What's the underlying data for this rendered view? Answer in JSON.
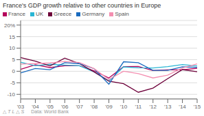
{
  "chart_data": {
    "type": "line",
    "title": "France's GDP growth relative to other countries in Europe",
    "categories": [
      "'03",
      "'04",
      "'05",
      "'06",
      "'07",
      "'08",
      "'09",
      "'10",
      "'11",
      "'12",
      "'13",
      "'14",
      "'15"
    ],
    "series": [
      {
        "name": "France",
        "color": "#b5005b",
        "values": [
          0.8,
          2.8,
          1.6,
          2.4,
          2.4,
          0.2,
          -2.9,
          2.0,
          2.1,
          0.3,
          0.6,
          0.6,
          1.3
        ]
      },
      {
        "name": "UK",
        "color": "#29b6d4",
        "values": [
          3.9,
          2.4,
          3.0,
          2.7,
          2.4,
          -0.3,
          -4.2,
          1.9,
          1.5,
          1.4,
          2.0,
          2.9,
          2.3
        ]
      },
      {
        "name": "Greece",
        "color": "#6d003a",
        "values": [
          5.9,
          4.4,
          2.3,
          5.7,
          3.3,
          -0.3,
          -4.3,
          -5.4,
          -9.1,
          -7.3,
          -3.2,
          0.7,
          -0.2
        ]
      },
      {
        "name": "Germany",
        "color": "#1a6bbf",
        "values": [
          -0.7,
          1.2,
          0.7,
          3.7,
          3.3,
          1.1,
          -5.6,
          4.1,
          3.7,
          0.4,
          0.4,
          1.9,
          1.7
        ]
      },
      {
        "name": "Spain",
        "color": "#f48fb1",
        "values": [
          3.1,
          3.3,
          3.6,
          4.2,
          3.8,
          1.1,
          -3.6,
          0.0,
          -1.0,
          -2.9,
          -1.7,
          1.4,
          3.2
        ]
      }
    ],
    "ylim": [
      -12,
      22
    ],
    "yticks": [
      -10,
      -5,
      0,
      5,
      10,
      15,
      {
        "value": 20,
        "label": "20%"
      }
    ],
    "grid": true,
    "legend": "upper left",
    "annotations": [
      "△ T L △ S",
      "Data: World Bank"
    ]
  }
}
